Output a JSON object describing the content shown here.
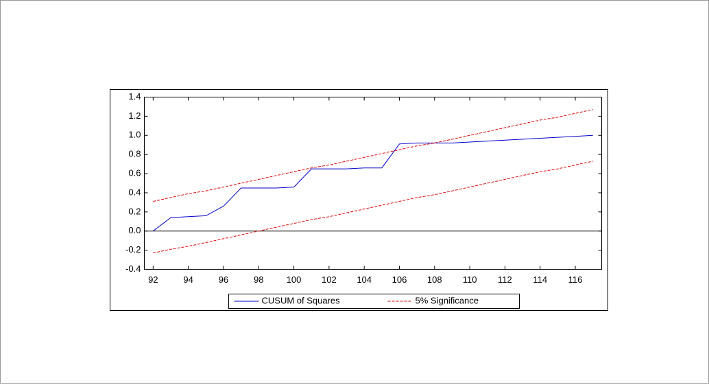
{
  "chart_data": {
    "type": "line",
    "x": [
      92,
      93,
      94,
      95,
      96,
      97,
      98,
      99,
      100,
      101,
      102,
      103,
      104,
      105,
      106,
      107,
      108,
      109,
      110,
      111,
      112,
      113,
      114,
      115,
      116,
      117
    ],
    "series": [
      {
        "name": "CUSUM of Squares",
        "color": "#0000cc",
        "dash": false,
        "values": [
          0,
          0.14,
          0.15,
          0.16,
          0.26,
          0.45,
          0.45,
          0.45,
          0.46,
          0.65,
          0.65,
          0.65,
          0.66,
          0.66,
          0.91,
          0.92,
          0.92,
          0.92,
          0.93,
          0.94,
          0.95,
          0.96,
          0.97,
          0.98,
          0.99,
          1.0
        ]
      },
      {
        "name": "5% Significance",
        "color": "#e00000",
        "dash": true,
        "values": [
          0.31,
          0.35,
          0.39,
          0.42,
          0.46,
          0.5,
          0.54,
          0.58,
          0.62,
          0.66,
          0.69,
          0.73,
          0.77,
          0.81,
          0.85,
          0.89,
          0.92,
          0.96,
          1.0,
          1.04,
          1.08,
          1.12,
          1.16,
          1.19,
          1.23,
          1.27
        ],
        "lower_values": [
          -0.23,
          -0.19,
          -0.16,
          -0.12,
          -0.08,
          -0.04,
          0,
          0.04,
          0.08,
          0.12,
          0.15,
          0.19,
          0.23,
          0.27,
          0.31,
          0.35,
          0.38,
          0.42,
          0.46,
          0.5,
          0.54,
          0.58,
          0.62,
          0.65,
          0.69,
          0.73
        ]
      }
    ],
    "xlim": [
      91.5,
      117.5
    ],
    "xticks": [
      92,
      94,
      96,
      98,
      100,
      102,
      104,
      106,
      108,
      110,
      112,
      114,
      116
    ],
    "ylim": [
      -0.4,
      1.4
    ],
    "yticks": [
      {
        "value": -0.4,
        "label": "-0.4"
      },
      {
        "value": -0.2,
        "label": "-0.2"
      },
      {
        "value": 0,
        "label": "0.0"
      },
      {
        "value": 0.2,
        "label": "0.2"
      },
      {
        "value": 0.4,
        "label": "0.4"
      },
      {
        "value": 0.6,
        "label": "0.6"
      },
      {
        "value": 0.8,
        "label": "0.8"
      },
      {
        "value": 1.0,
        "label": "1.0"
      },
      {
        "value": 1.2,
        "label": "1.2"
      },
      {
        "value": 1.4,
        "label": "1.4"
      }
    ],
    "zero_line": true,
    "legend": "bottom"
  }
}
